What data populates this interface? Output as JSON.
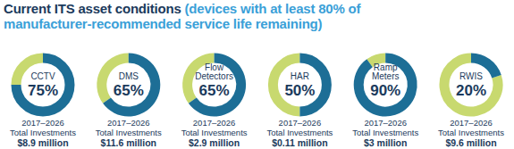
{
  "chart_data": {
    "type": "donut",
    "title": "Current ITS asset conditions",
    "subtitle": "(devices with at least 80% of manufacturer-recommended service life remaining)",
    "categories": [
      "CCTV",
      "DMS",
      "Flow Detectors",
      "HAR",
      "Ramp Meters",
      "RWIS"
    ],
    "values": [
      75,
      65,
      65,
      50,
      90,
      20
    ],
    "value_labels": [
      "75%",
      "65%",
      "65%",
      "50%",
      "90%",
      "20%"
    ],
    "data_labels": true,
    "color": "#1d6e96",
    "period": "2017–2026",
    "investment_title": "Total Investments",
    "investments": [
      8.9,
      11.6,
      2.9,
      0.11,
      3,
      9.6
    ],
    "investment_labels": [
      "$8.9 million",
      "$11.6 million",
      "$2.9 million",
      "$0.11 million",
      "$3 million",
      "$9.6 million"
    ]
  }
}
